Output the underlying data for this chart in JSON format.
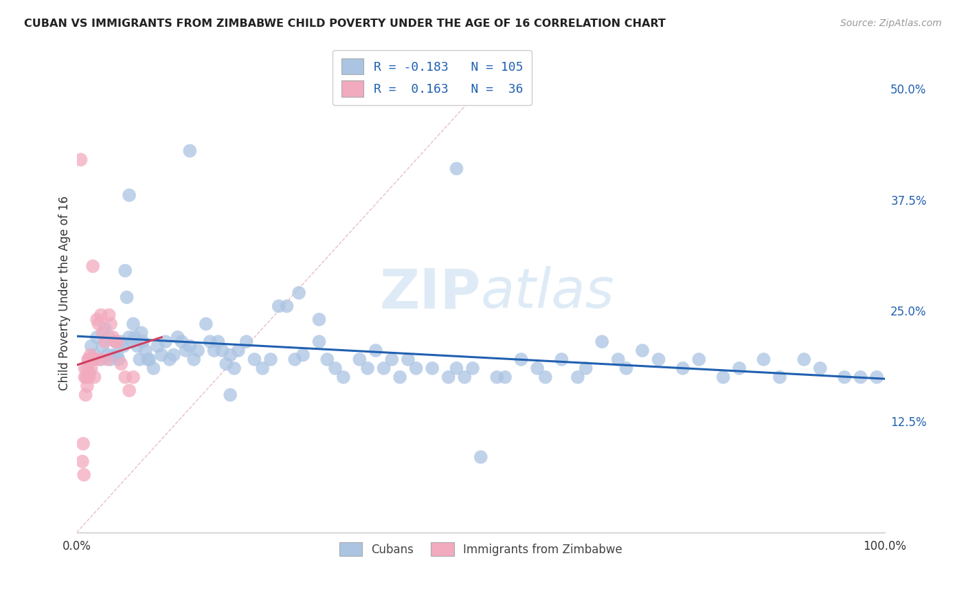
{
  "title": "CUBAN VS IMMIGRANTS FROM ZIMBABWE CHILD POVERTY UNDER THE AGE OF 16 CORRELATION CHART",
  "source": "Source: ZipAtlas.com",
  "ylabel": "Child Poverty Under the Age of 16",
  "xlim": [
    0.0,
    1.0
  ],
  "ylim": [
    0.0,
    0.54
  ],
  "yticks": [
    0.0,
    0.125,
    0.25,
    0.375,
    0.5
  ],
  "ytick_labels": [
    "",
    "12.5%",
    "25.0%",
    "37.5%",
    "50.0%"
  ],
  "R_cuban": -0.183,
  "N_cuban": 105,
  "R_zimbabwe": 0.163,
  "N_zimbabwe": 36,
  "blue_scatter_color": "#aac4e2",
  "pink_scatter_color": "#f2aabe",
  "blue_line_color": "#2060b0",
  "pink_line_color": "#d04060",
  "diagonal_color": "#e0a0b0",
  "background_color": "#ffffff",
  "grid_color": "#d8d8d8",
  "cuban_x": [
    0.018,
    0.022,
    0.025,
    0.03,
    0.032,
    0.035,
    0.038,
    0.04,
    0.042,
    0.045,
    0.048,
    0.05,
    0.052,
    0.055,
    0.058,
    0.06,
    0.062,
    0.065,
    0.068,
    0.07,
    0.072,
    0.075,
    0.078,
    0.08,
    0.082,
    0.085,
    0.088,
    0.09,
    0.095,
    0.1,
    0.105,
    0.11,
    0.115,
    0.12,
    0.125,
    0.13,
    0.135,
    0.14,
    0.145,
    0.15,
    0.16,
    0.165,
    0.17,
    0.175,
    0.18,
    0.185,
    0.19,
    0.195,
    0.2,
    0.21,
    0.22,
    0.23,
    0.24,
    0.25,
    0.26,
    0.27,
    0.28,
    0.3,
    0.31,
    0.32,
    0.33,
    0.35,
    0.36,
    0.37,
    0.38,
    0.39,
    0.4,
    0.41,
    0.42,
    0.44,
    0.46,
    0.47,
    0.48,
    0.49,
    0.5,
    0.52,
    0.53,
    0.55,
    0.57,
    0.58,
    0.6,
    0.62,
    0.63,
    0.65,
    0.67,
    0.68,
    0.7,
    0.72,
    0.75,
    0.77,
    0.8,
    0.82,
    0.85,
    0.87,
    0.9,
    0.92,
    0.95,
    0.97,
    0.99,
    0.14,
    0.47,
    0.275,
    0.065,
    0.3,
    0.19
  ],
  "cuban_y": [
    0.21,
    0.2,
    0.22,
    0.195,
    0.21,
    0.23,
    0.2,
    0.22,
    0.195,
    0.2,
    0.215,
    0.2,
    0.195,
    0.215,
    0.21,
    0.295,
    0.265,
    0.22,
    0.215,
    0.235,
    0.22,
    0.21,
    0.195,
    0.225,
    0.215,
    0.205,
    0.195,
    0.195,
    0.185,
    0.21,
    0.2,
    0.215,
    0.195,
    0.2,
    0.22,
    0.215,
    0.205,
    0.21,
    0.195,
    0.205,
    0.235,
    0.215,
    0.205,
    0.215,
    0.205,
    0.19,
    0.2,
    0.185,
    0.205,
    0.215,
    0.195,
    0.185,
    0.195,
    0.255,
    0.255,
    0.195,
    0.2,
    0.215,
    0.195,
    0.185,
    0.175,
    0.195,
    0.185,
    0.205,
    0.185,
    0.195,
    0.175,
    0.195,
    0.185,
    0.185,
    0.175,
    0.185,
    0.175,
    0.185,
    0.085,
    0.175,
    0.175,
    0.195,
    0.185,
    0.175,
    0.195,
    0.175,
    0.185,
    0.215,
    0.195,
    0.185,
    0.205,
    0.195,
    0.185,
    0.195,
    0.175,
    0.185,
    0.195,
    0.175,
    0.195,
    0.185,
    0.175,
    0.175,
    0.175,
    0.43,
    0.41,
    0.27,
    0.38,
    0.24,
    0.155
  ],
  "zimb_x": [
    0.005,
    0.007,
    0.008,
    0.009,
    0.01,
    0.01,
    0.011,
    0.012,
    0.013,
    0.013,
    0.014,
    0.015,
    0.015,
    0.016,
    0.017,
    0.018,
    0.019,
    0.02,
    0.021,
    0.022,
    0.025,
    0.027,
    0.028,
    0.03,
    0.032,
    0.035,
    0.038,
    0.04,
    0.042,
    0.045,
    0.048,
    0.05,
    0.055,
    0.06,
    0.065,
    0.07
  ],
  "zimb_y": [
    0.42,
    0.08,
    0.1,
    0.065,
    0.175,
    0.185,
    0.155,
    0.175,
    0.165,
    0.185,
    0.195,
    0.175,
    0.195,
    0.18,
    0.2,
    0.185,
    0.195,
    0.3,
    0.195,
    0.175,
    0.24,
    0.235,
    0.195,
    0.245,
    0.225,
    0.215,
    0.195,
    0.245,
    0.235,
    0.22,
    0.215,
    0.215,
    0.19,
    0.175,
    0.16,
    0.175
  ],
  "watermark": "ZIPatlas",
  "watermark_color": "#dde8f0"
}
